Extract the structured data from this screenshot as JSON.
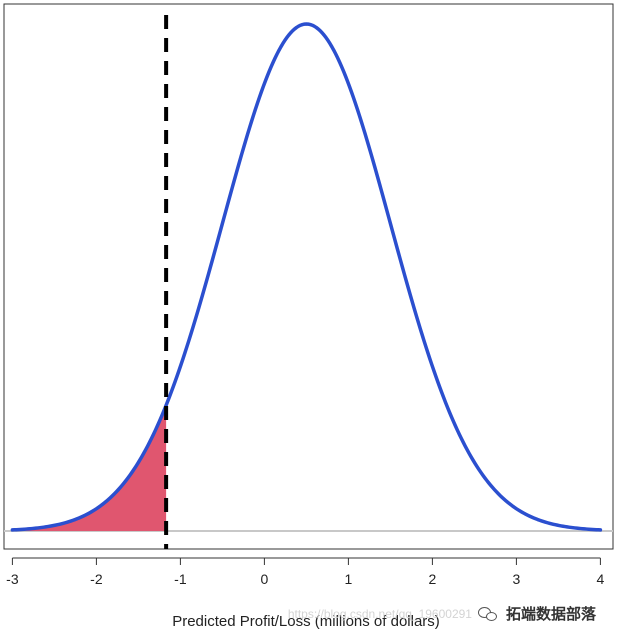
{
  "chart_data": {
    "type": "area",
    "title": "",
    "xlabel": "Predicted Profit/Loss (millions of dollars)",
    "ylabel": "",
    "xlim": [
      -3.1,
      4.15
    ],
    "ylim": [
      0,
      0.42
    ],
    "x_ticks": [
      -3,
      -2,
      -1,
      0,
      1,
      2,
      3,
      4
    ],
    "tick_labels": [
      "-3",
      "-2",
      "-1",
      "0",
      "1",
      "2",
      "3",
      "4"
    ],
    "grid": false,
    "legend": "none",
    "series": [
      {
        "kind": "density-curve",
        "distribution": "normal",
        "mean": 0.5,
        "sd": 1.0,
        "x_range": [
          -3.0,
          4.0
        ],
        "color": "#2b4fcf"
      }
    ],
    "shaded_region": {
      "x_from": -3.0,
      "x_to": -1.17,
      "color": "#e0566f"
    },
    "threshold_line": {
      "x": -1.17,
      "style": "dashed",
      "color": "#000000"
    },
    "baseline": {
      "y": 0,
      "color": "#c8c8c8"
    }
  },
  "watermark": {
    "url_text": "https://blog.csdn.net/qq_19600291",
    "brand_text": "拓端数据部落"
  }
}
